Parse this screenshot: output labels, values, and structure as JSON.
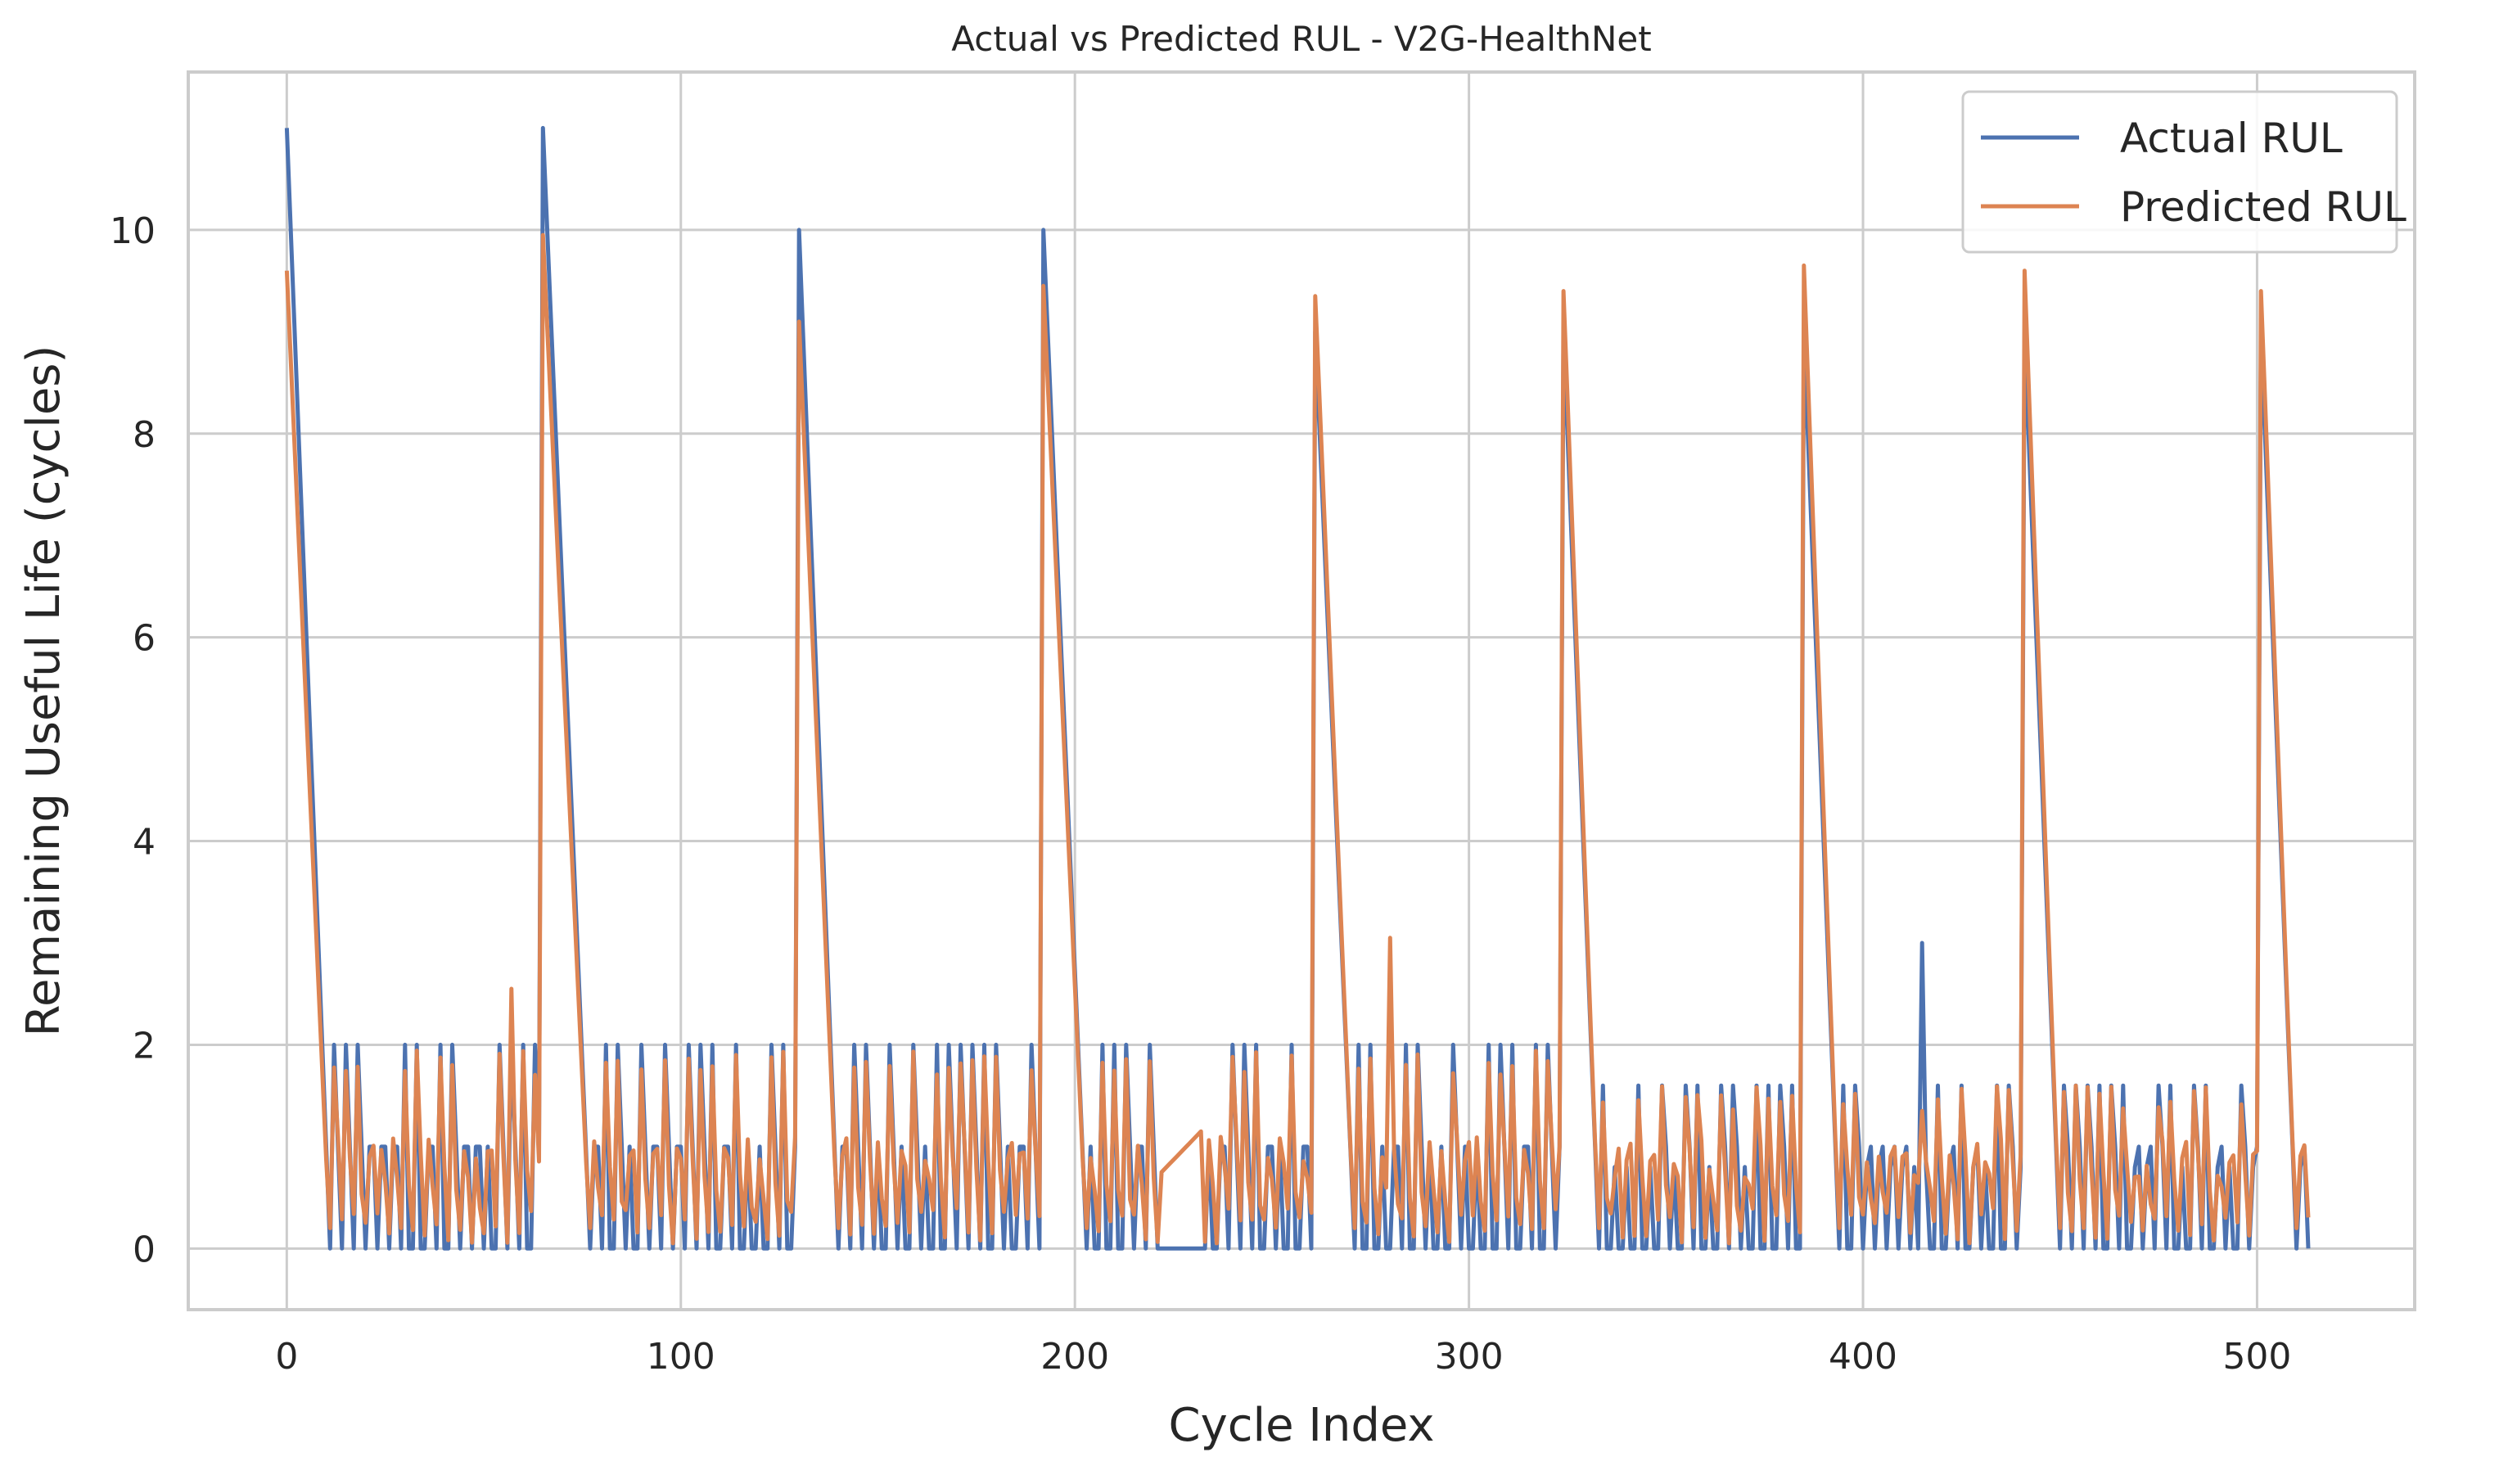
{
  "chart_data": {
    "type": "line",
    "title": "Actual vs Predicted RUL - V2G-HealthNet",
    "xlabel": "Cycle Index",
    "ylabel": "Remaining Useful Life (cycles)",
    "xlim": [
      -25,
      540
    ],
    "ylim": [
      -0.6,
      11.55
    ],
    "xticks": [
      0,
      100,
      200,
      300,
      400,
      500
    ],
    "yticks": [
      0,
      2,
      4,
      6,
      8,
      10
    ],
    "grid": true,
    "legend_position": "top-right",
    "colors": {
      "actual": "#4c72b0",
      "predicted": "#dd8452"
    },
    "segments": [
      {
        "start": 0,
        "peakA": 11,
        "peakP": 9.6,
        "decay": 11,
        "end": 65,
        "ampA": 2,
        "ampP": 1.8,
        "spikeAt": 57,
        "spikeP": 2.55
      },
      {
        "start": 65,
        "peakA": 11,
        "peakP": 9.95,
        "decay": 12,
        "end": 130,
        "ampA": 2,
        "ampP": 1.8,
        "spikeAt": null,
        "spikeP": null
      },
      {
        "start": 130,
        "peakA": 10,
        "peakP": 9.1,
        "decay": 10,
        "end": 192,
        "ampA": 2,
        "ampP": 1.8,
        "spikeAt": null,
        "spikeP": null
      },
      {
        "start": 192,
        "peakA": 10,
        "peakP": 9.45,
        "decay": 11,
        "end": 261,
        "ampA": 2,
        "ampP": 1.8,
        "spikeAt": null,
        "spikeP": null
      },
      {
        "start": 261,
        "peakA": 9,
        "peakP": 9.35,
        "decay": 10,
        "end": 324,
        "ampA": 2,
        "ampP": 1.9,
        "spikeAt": 280,
        "spikeP": 3.05
      },
      {
        "start": 324,
        "peakA": 9,
        "peakP": 9.4,
        "decay": 9,
        "end": 385,
        "ampA": 1.6,
        "ampP": 1.65,
        "spikeAt": 313,
        "spikeP": 2.1
      },
      {
        "start": 385,
        "peakA": 9,
        "peakP": 9.65,
        "decay": 9,
        "end": 441,
        "ampA": 1.6,
        "ampP": 1.75,
        "spikeAt": 415,
        "spikeA": 3,
        "spikeP": 1.35
      },
      {
        "start": 441,
        "peakA": 9,
        "peakP": 9.6,
        "decay": 9,
        "end": 501,
        "ampA": 1.6,
        "ampP": 1.8,
        "spikeAt": null,
        "spikeP": null
      },
      {
        "start": 501,
        "peakA": 9,
        "peakP": 9.4,
        "decay": 9,
        "end": 514,
        "ampA": 1.6,
        "ampP": 1.65,
        "spikeAt": null,
        "spikeP": null
      }
    ],
    "series": [
      {
        "name": "Actual RUL",
        "key": "actual"
      },
      {
        "name": "Predicted RUL",
        "key": "predicted"
      }
    ]
  }
}
